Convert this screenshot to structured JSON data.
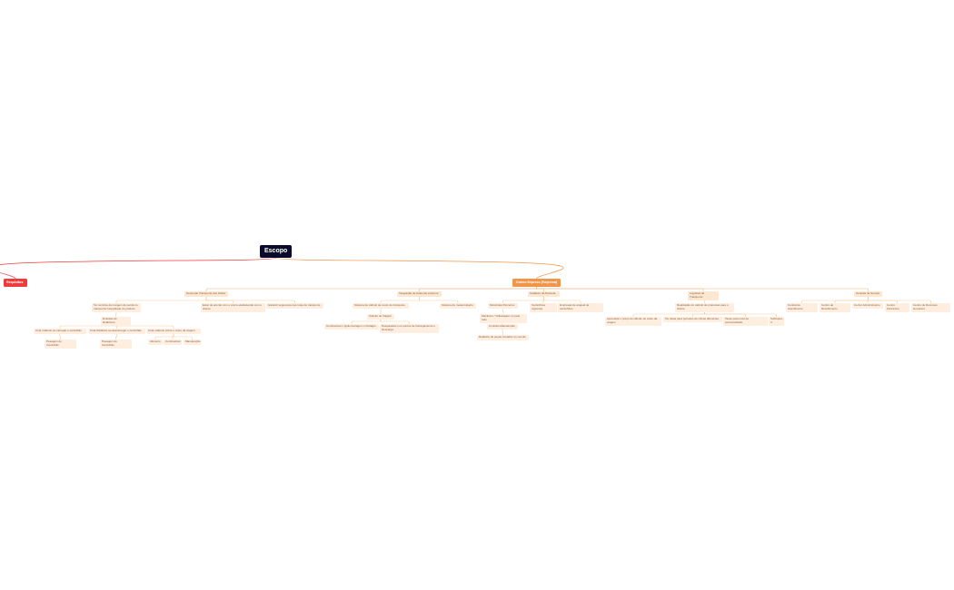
{
  "root": "Escopo",
  "requisitos": "Requisitos",
  "ordem": "Ordem Express (Empresa)",
  "colors": {
    "root": "#0b0a2a",
    "requisitos": "#ef3b3b",
    "ordem": "#f0954a",
    "node": "#fdeedf",
    "line": "#f5c99a"
  },
  "gerenciar": {
    "label": "Gerenciar Transporte dos Grãos",
    "margem": "Ter controle da margem de perda no transporte/ Integridade do produto",
    "prazo": "Estar de acordo com o prazo estabelecido com o cliente",
    "seguranca": "Garantir segurança nas rotas de transporte",
    "relatorios": "Emissão de Relatórios",
    "rel_carregar": "Criar relatório ao carregar o caminhão",
    "rel_descarregar": "Criar Relatório ao descarregar o caminhão",
    "rel_custo": "Criar relatório sobre o custo da viagem",
    "pesagem1": "Pesagem do Caminhão",
    "pesagem2": "Pesagem do Caminhão",
    "alimento": "Alimento",
    "combustivel": "Combustível",
    "manutencao": "Manutenção"
  },
  "integracao": {
    "label": "Integração de sistemas externos",
    "calculo": "Sistema de cálculo de custo de transporte",
    "meteo": "Sistema de meteorológico",
    "viagem": "Cálculo de Viagem",
    "combustivel": "Combustível x Quilometragem x Pedágio",
    "pesquisador": "Pesquisador nos pontos de Carregamento e Descarga"
  },
  "cadastro": {
    "label": "Cadastro da Parceria",
    "motoristas": "Motoristas Parceiros",
    "caminhoes": "Caminhões regionais",
    "empresas": "Empresas de aluguel de caminhões",
    "mecanico": "Mecânico / Volkswagen no país todo",
    "contrato": "Contrato Manutenção",
    "relatorio": "Relatório de peças trocadas no veículo"
  },
  "logistica": {
    "label": "Logística de Transporte",
    "realizacao": "Realização do cálculo de propostas para o cliente",
    "aproveitar": "Aproveitar o preço do cálculo do custo da viagem",
    "taxas_clima": "Ter taxas para períodos de climas diferentes",
    "taxas_peric": "Taxas para nível de periculosidade",
    "subtopico": "Subtópico 4"
  },
  "centrais": {
    "label": "Centrais de Serviço",
    "atendimento": "Central de Atendimento",
    "recebimento": "Centro de Recebimento",
    "administrativo": "Centro Administrativo",
    "financeiro": "Centro Financeiro",
    "rh": "Centro de Recursos Humanos"
  }
}
